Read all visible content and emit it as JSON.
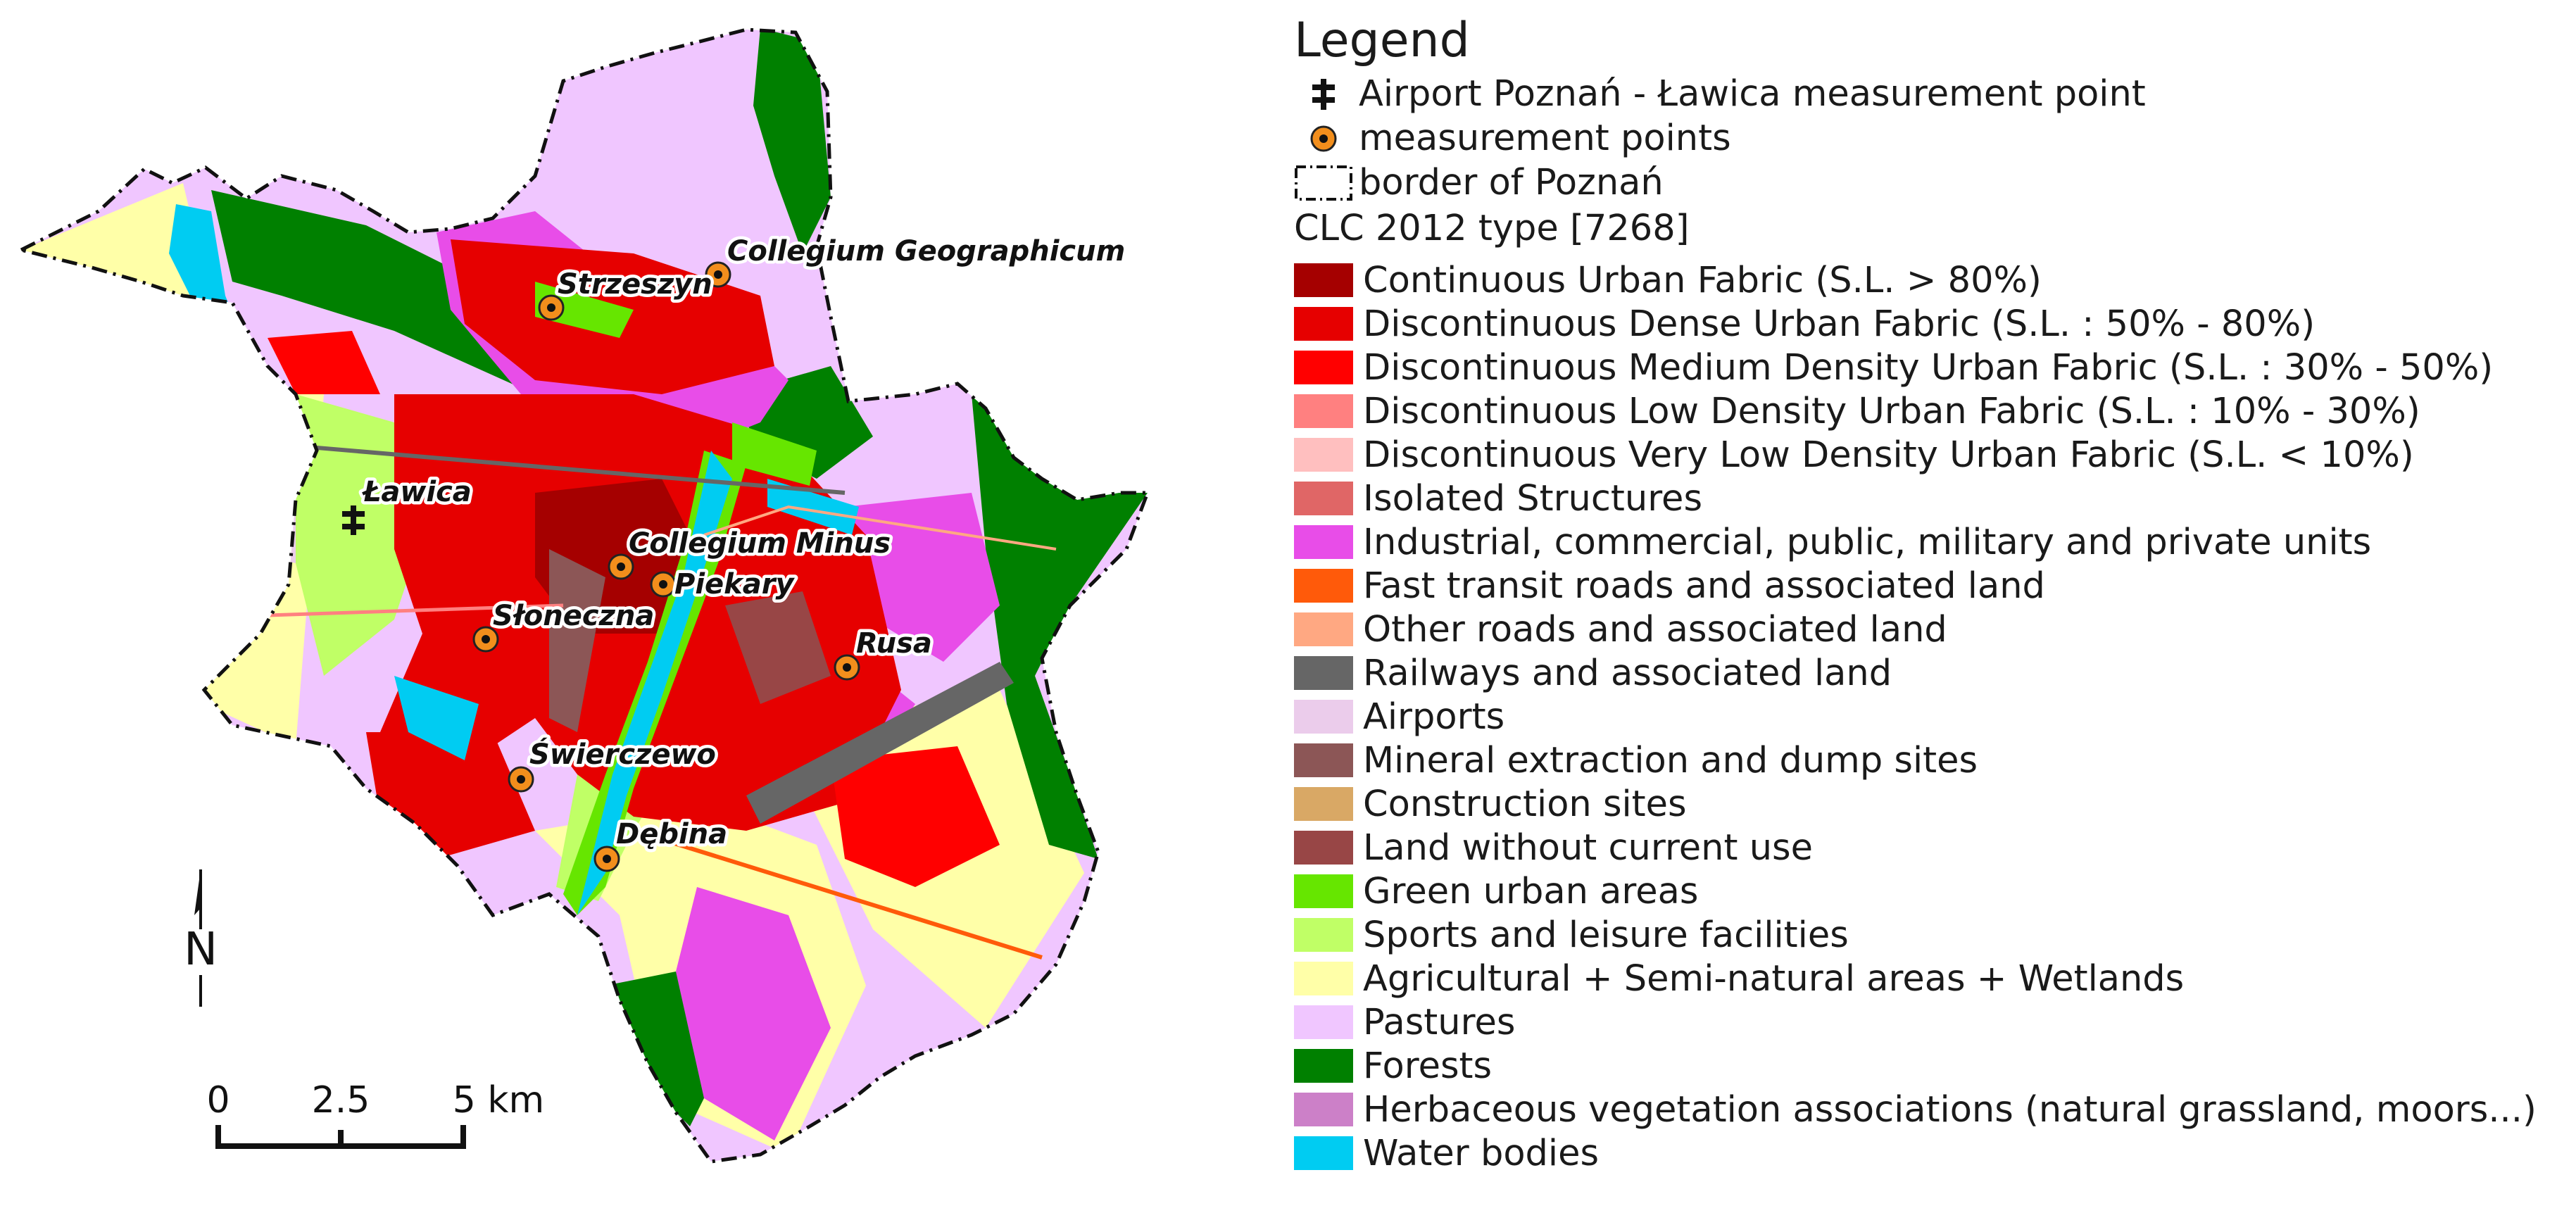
{
  "legend": {
    "title": "Legend",
    "airport_point": "Airport Poznań - Ławica measurement point",
    "measurement_points": "measurement points",
    "border": "border of Poznań",
    "clc_heading": "CLC 2012 type [7268]",
    "items": [
      {
        "label": "Continuous Urban Fabric (S.L. > 80%)",
        "color": "#a50000"
      },
      {
        "label": "Discontinuous Dense Urban Fabric (S.L. : 50% -  80%)",
        "color": "#e60000"
      },
      {
        "label": "Discontinuous Medium Density Urban Fabric (S.L. : 30% - 50%)",
        "color": "#ff0000"
      },
      {
        "label": "Discontinuous Low Density Urban Fabric (S.L. : 10% - 30%)",
        "color": "#ff8080"
      },
      {
        "label": "Discontinuous Very Low Density Urban Fabric (S.L. < 10%)",
        "color": "#ffbfbf"
      },
      {
        "label": "Isolated Structures",
        "color": "#e06666"
      },
      {
        "label": "Industrial, commercial, public, military and private units",
        "color": "#e84de8"
      },
      {
        "label": "Fast transit roads and associated land",
        "color": "#ff5a0a"
      },
      {
        "label": "Other roads and associated land",
        "color": "#ffa882"
      },
      {
        "label": "Railways and associated land",
        "color": "#666666"
      },
      {
        "label": "Airports",
        "color": "#ebcceb"
      },
      {
        "label": "Mineral extraction and dump sites",
        "color": "#8c5656"
      },
      {
        "label": "Construction sites",
        "color": "#d9a865"
      },
      {
        "label": "Land without current use",
        "color": "#984646"
      },
      {
        "label": "Green urban areas",
        "color": "#66e600"
      },
      {
        "label": "Sports and leisure facilities",
        "color": "#c0ff66"
      },
      {
        "label": "Agricultural + Semi-natural areas + Wetlands",
        "color": "#ffffa8"
      },
      {
        "label": "Pastures",
        "color": "#f0c6ff"
      },
      {
        "label": "Forests",
        "color": "#008000"
      },
      {
        "label": "Herbaceous vegetation associations (natural grassland, moors...)",
        "color": "#cc80c8"
      },
      {
        "label": "Water bodies",
        "color": "#00ccf2"
      }
    ]
  },
  "map": {
    "north_label": "N",
    "scale": {
      "tick_0": "0",
      "tick_1": "2.5",
      "tick_2": "5 km"
    },
    "stations": [
      {
        "name": "Collegium Geographicum"
      },
      {
        "name": "Strzeszyn"
      },
      {
        "name": "Ławica"
      },
      {
        "name": "Collegium Minus"
      },
      {
        "name": "Piekary"
      },
      {
        "name": "Słoneczna"
      },
      {
        "name": "Rusa"
      },
      {
        "name": "Świerczewo"
      },
      {
        "name": "Dębina"
      }
    ]
  }
}
